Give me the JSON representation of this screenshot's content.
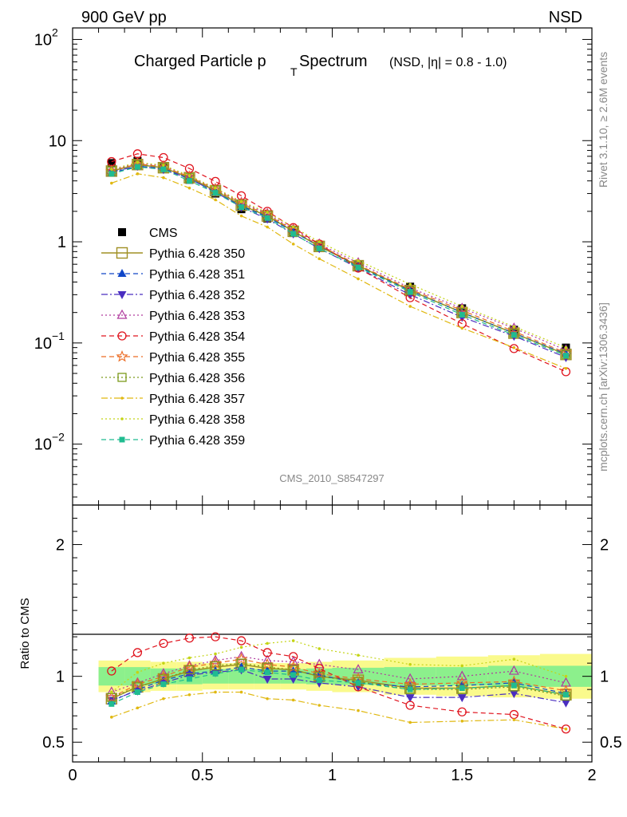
{
  "header": {
    "left": "900 GeV pp",
    "right": "NSD",
    "title_main": "Charged Particle p",
    "title_sub": "T",
    "title_rest": " Spectrum",
    "title_extra": "(NSD, |η| = 0.8 - 1.0)",
    "analysis": "CMS_2010_S8547297",
    "side_top": "Rivet 3.1.10, ≥ 2.6M events",
    "side_bottom": "mcplots.cern.ch [arXiv:1306.3436]"
  },
  "chart_data": [
    {
      "type": "scatter",
      "panel": "main",
      "yscale": "log",
      "xlim": [
        0,
        2.0
      ],
      "ylim": [
        0.0025,
        130
      ],
      "y_ticks": [
        "10^-2",
        "10^-1",
        "1",
        "10",
        "10^2"
      ],
      "x": [
        0.15,
        0.25,
        0.35,
        0.45,
        0.55,
        0.65,
        0.75,
        0.85,
        0.95,
        1.1,
        1.3,
        1.5,
        1.7,
        1.9
      ],
      "series": [
        {
          "name": "CMS",
          "color": "#000000",
          "marker": "square-filled",
          "line": "none",
          "values": [
            6.0,
            6.3,
            5.5,
            4.1,
            3.0,
            2.1,
            1.7,
            1.22,
            0.9,
            0.6,
            0.36,
            0.22,
            0.135,
            0.09
          ]
        },
        {
          "name": "Pythia 6.428 350",
          "color": "#a09024",
          "marker": "square-open-large",
          "line": "solid",
          "values": [
            5.0,
            5.8,
            5.4,
            4.3,
            3.2,
            2.3,
            1.8,
            1.27,
            0.9,
            0.58,
            0.33,
            0.2,
            0.125,
            0.077
          ]
        },
        {
          "name": "Pythia 6.428 351",
          "color": "#1046c8",
          "marker": "triangle-up-filled",
          "line": "dashed",
          "values": [
            4.8,
            5.6,
            5.3,
            4.2,
            3.1,
            2.25,
            1.77,
            1.25,
            0.91,
            0.57,
            0.33,
            0.2,
            0.125,
            0.078
          ]
        },
        {
          "name": "Pythia 6.428 352",
          "color": "#4a2ec0",
          "marker": "triangle-down-filled",
          "line": "dashdot",
          "values": [
            4.9,
            5.6,
            5.2,
            4.2,
            3.1,
            2.2,
            1.68,
            1.2,
            0.86,
            0.55,
            0.3,
            0.18,
            0.117,
            0.072
          ]
        },
        {
          "name": "Pythia 6.428 353",
          "color": "#b03a9e",
          "marker": "triangle-up-open",
          "line": "dotted",
          "values": [
            5.1,
            6.0,
            5.6,
            4.4,
            3.35,
            2.45,
            1.9,
            1.33,
            0.95,
            0.62,
            0.35,
            0.22,
            0.14,
            0.085
          ]
        },
        {
          "name": "Pythia 6.428 354",
          "color": "#e0141e",
          "marker": "circle-open",
          "line": "dashed",
          "values": [
            6.2,
            7.4,
            6.8,
            5.3,
            3.95,
            2.85,
            2.0,
            1.38,
            0.95,
            0.55,
            0.28,
            0.155,
            0.088,
            0.052
          ]
        },
        {
          "name": "Pythia 6.428 355",
          "color": "#ec6c24",
          "marker": "star-open",
          "line": "dashed",
          "values": [
            5.0,
            5.9,
            5.5,
            4.4,
            3.3,
            2.4,
            1.85,
            1.3,
            0.92,
            0.59,
            0.34,
            0.21,
            0.13,
            0.08
          ]
        },
        {
          "name": "Pythia 6.428 356",
          "color": "#7c9a1c",
          "marker": "square-open",
          "line": "dotted",
          "values": [
            5.0,
            5.8,
            5.4,
            4.3,
            3.25,
            2.35,
            1.82,
            1.28,
            0.9,
            0.58,
            0.33,
            0.2,
            0.125,
            0.077
          ]
        },
        {
          "name": "Pythia 6.428 357",
          "color": "#e0b810",
          "marker": "dot",
          "line": "dashdot",
          "values": [
            3.8,
            4.7,
            4.3,
            3.4,
            2.6,
            1.8,
            1.4,
            0.95,
            0.68,
            0.43,
            0.23,
            0.14,
            0.09,
            0.056
          ]
        },
        {
          "name": "Pythia 6.428 358",
          "color": "#c4d414",
          "marker": "dot",
          "line": "dotted",
          "values": [
            5.2,
            6.1,
            5.7,
            4.5,
            3.4,
            2.5,
            1.95,
            1.4,
            1.0,
            0.65,
            0.38,
            0.23,
            0.145,
            0.09
          ]
        },
        {
          "name": "Pythia 6.428 359",
          "color": "#20bc90",
          "marker": "square-filled-small",
          "line": "dashed",
          "values": [
            4.7,
            5.5,
            5.2,
            4.0,
            3.05,
            2.2,
            1.72,
            1.2,
            0.86,
            0.56,
            0.32,
            0.19,
            0.12,
            0.075
          ]
        }
      ]
    },
    {
      "type": "line",
      "panel": "ratio",
      "ylabel": "Ratio to CMS",
      "xlim": [
        0,
        2.0
      ],
      "ylim": [
        0.35,
        2.3
      ],
      "y_ticks": [
        "0.5",
        "1",
        "2"
      ],
      "x_ticks": [
        "0",
        "0.5",
        "1",
        "1.5",
        "2"
      ],
      "reference_line": 1,
      "uncertainty_bands": {
        "edges": [
          0.1,
          0.2,
          0.3,
          0.4,
          0.5,
          0.6,
          0.7,
          0.8,
          0.9,
          1.0,
          1.2,
          1.4,
          1.6,
          1.8,
          2.0
        ],
        "stat": [
          0.07,
          0.07,
          0.06,
          0.06,
          0.055,
          0.055,
          0.055,
          0.055,
          0.06,
          0.065,
          0.07,
          0.07,
          0.08,
          0.08
        ],
        "syst": [
          0.12,
          0.12,
          0.11,
          0.11,
          0.1,
          0.1,
          0.1,
          0.1,
          0.11,
          0.12,
          0.14,
          0.15,
          0.16,
          0.17
        ],
        "stat_color": "#8cf08c",
        "syst_color": "#fafa8c"
      },
      "x": [
        0.15,
        0.25,
        0.35,
        0.45,
        0.55,
        0.65,
        0.75,
        0.85,
        0.95,
        1.1,
        1.3,
        1.5,
        1.7,
        1.9
      ],
      "series": [
        {
          "name": "Pythia 6.428 350",
          "values": [
            0.83,
            0.92,
            0.98,
            1.04,
            1.07,
            1.09,
            1.06,
            1.05,
            1.0,
            0.97,
            0.91,
            0.91,
            0.93,
            0.86
          ]
        },
        {
          "name": "Pythia 6.428 351",
          "values": [
            0.81,
            0.9,
            0.97,
            1.02,
            1.04,
            1.07,
            1.04,
            1.04,
            1.01,
            0.95,
            0.92,
            0.93,
            0.95,
            0.87
          ]
        },
        {
          "name": "Pythia 6.428 352",
          "values": [
            0.82,
            0.89,
            0.95,
            1.01,
            1.03,
            1.05,
            0.98,
            0.98,
            0.95,
            0.92,
            0.84,
            0.84,
            0.87,
            0.8
          ]
        },
        {
          "name": "Pythia 6.428 353",
          "values": [
            0.88,
            0.95,
            1.02,
            1.08,
            1.12,
            1.15,
            1.12,
            1.11,
            1.09,
            1.05,
            0.98,
            1.0,
            1.04,
            0.95
          ]
        },
        {
          "name": "Pythia 6.428 354",
          "values": [
            1.04,
            1.18,
            1.25,
            1.29,
            1.3,
            1.27,
            1.18,
            1.15,
            1.06,
            0.92,
            0.78,
            0.73,
            0.71,
            0.6
          ]
        },
        {
          "name": "Pythia 6.428 355",
          "values": [
            0.84,
            0.94,
            1.0,
            1.07,
            1.1,
            1.13,
            1.09,
            1.07,
            1.02,
            0.98,
            0.94,
            0.95,
            0.96,
            0.89
          ]
        },
        {
          "name": "Pythia 6.428 356",
          "values": [
            0.84,
            0.92,
            0.98,
            1.05,
            1.08,
            1.1,
            1.07,
            1.05,
            1.0,
            0.96,
            0.9,
            0.9,
            0.92,
            0.85
          ]
        },
        {
          "name": "Pythia 6.428 357",
          "values": [
            0.69,
            0.76,
            0.83,
            0.86,
            0.88,
            0.88,
            0.83,
            0.82,
            0.78,
            0.74,
            0.65,
            0.66,
            0.67,
            0.6
          ]
        },
        {
          "name": "Pythia 6.428 358",
          "values": [
            0.88,
            1.03,
            1.1,
            1.14,
            1.17,
            1.22,
            1.25,
            1.27,
            1.21,
            1.16,
            1.09,
            1.08,
            1.13,
            1.0
          ]
        },
        {
          "name": "Pythia 6.428 359",
          "values": [
            0.79,
            0.88,
            0.94,
            0.98,
            1.02,
            1.05,
            1.03,
            1.01,
            0.97,
            0.95,
            0.9,
            0.91,
            0.93,
            0.86
          ]
        }
      ]
    }
  ]
}
